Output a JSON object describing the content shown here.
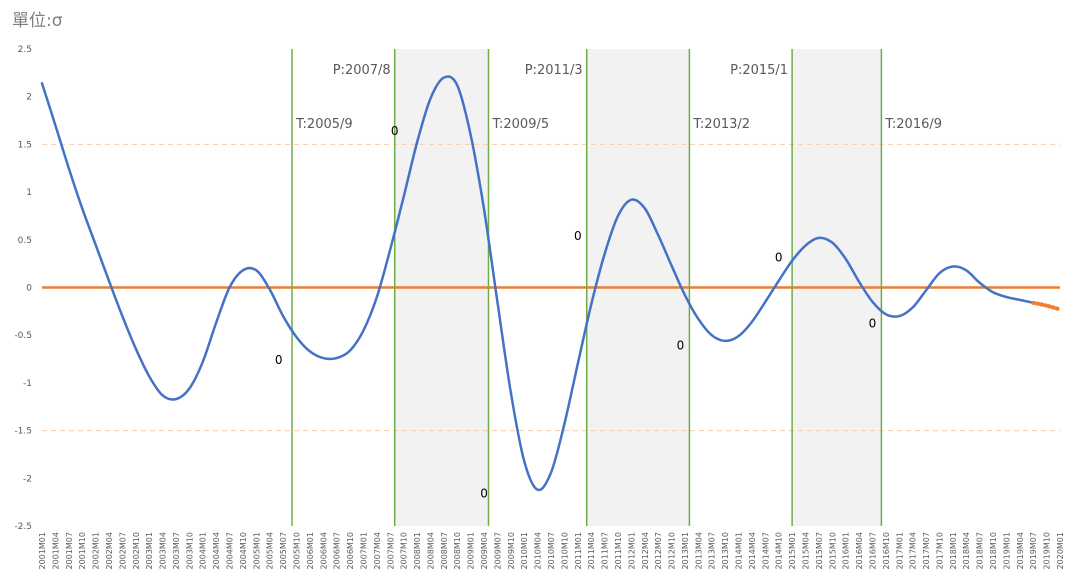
{
  "title": "單位:σ",
  "chart_data": {
    "type": "line",
    "title": "單位:σ",
    "xlabel": "",
    "ylabel": "",
    "ylim": [
      -2.5,
      2.5
    ],
    "yticks": [
      "2.5",
      "2",
      "1.5",
      "1",
      "0.5",
      "0",
      "-0.5",
      "-1",
      "-1.5",
      "-2",
      "-2.5"
    ],
    "ytick_values": [
      2.5,
      2,
      1.5,
      1,
      0.5,
      0,
      -0.5,
      -1,
      -1.5,
      -2,
      -2.5
    ],
    "x_start": "2001M01",
    "x_end": "2020M01",
    "x_tick_step_months": 3,
    "grid": false,
    "reference_lines": [
      {
        "value": 0,
        "color": "#ED7D31",
        "style": "solid"
      },
      {
        "value": 1.5,
        "color": "#F8CBAD",
        "style": "dashed"
      },
      {
        "value": -1.5,
        "color": "#F8CBAD",
        "style": "dashed"
      }
    ],
    "cycle_markers": [
      {
        "label": "T:2005/9",
        "date": "2005M09"
      },
      {
        "label": "P:2007/8",
        "date": "2007M08"
      },
      {
        "label": "T:2009/5",
        "date": "2009M05"
      },
      {
        "label": "P:2011/3",
        "date": "2011M03"
      },
      {
        "label": "T:2013/2",
        "date": "2013M02"
      },
      {
        "label": "P:2015/1",
        "date": "2015M01"
      },
      {
        "label": "T:2016/9",
        "date": "2016M09"
      }
    ],
    "shaded_periods": [
      {
        "from": "2007M08",
        "to": "2009M05"
      },
      {
        "from": "2011M03",
        "to": "2013M02"
      },
      {
        "from": "2015M01",
        "to": "2016M09"
      }
    ],
    "point_labels": [
      {
        "text": "0",
        "date": "2005M06",
        "y": -0.8
      },
      {
        "text": "0",
        "date": "2007M08",
        "y": 1.6
      },
      {
        "text": "0",
        "date": "2009M04",
        "y": -2.2
      },
      {
        "text": "0",
        "date": "2011M01",
        "y": 0.5
      },
      {
        "text": "0",
        "date": "2012M12",
        "y": -0.65
      },
      {
        "text": "0",
        "date": "2014M10",
        "y": 0.27
      },
      {
        "text": "0",
        "date": "2016M07",
        "y": -0.42
      }
    ],
    "series": [
      {
        "name": "",
        "color": "#4472C4",
        "style": "solid",
        "points": [
          [
            "2001M01",
            2.14
          ],
          [
            "2001M04",
            1.7
          ],
          [
            "2001M07",
            1.25
          ],
          [
            "2001M10",
            0.83
          ],
          [
            "2002M01",
            0.45
          ],
          [
            "2002M04",
            0.07
          ],
          [
            "2002M07",
            -0.3
          ],
          [
            "2002M10",
            -0.64
          ],
          [
            "2003M01",
            -0.93
          ],
          [
            "2003M04",
            -1.13
          ],
          [
            "2003M07",
            -1.17
          ],
          [
            "2003M10",
            -1.06
          ],
          [
            "2004M01",
            -0.78
          ],
          [
            "2004M04",
            -0.37
          ],
          [
            "2004M07",
            0.0
          ],
          [
            "2004M10",
            0.18
          ],
          [
            "2005M01",
            0.18
          ],
          [
            "2005M04",
            -0.02
          ],
          [
            "2005M07",
            -0.3
          ],
          [
            "2005M10",
            -0.52
          ],
          [
            "2006M01",
            -0.67
          ],
          [
            "2006M04",
            -0.74
          ],
          [
            "2006M07",
            -0.74
          ],
          [
            "2006M10",
            -0.66
          ],
          [
            "2007M01",
            -0.45
          ],
          [
            "2007M04",
            -0.1
          ],
          [
            "2007M07",
            0.4
          ],
          [
            "2007M10",
            0.95
          ],
          [
            "2008M01",
            1.52
          ],
          [
            "2008M04",
            1.98
          ],
          [
            "2008M07",
            2.2
          ],
          [
            "2008M10",
            2.12
          ],
          [
            "2009M01",
            1.6
          ],
          [
            "2009M04",
            0.82
          ],
          [
            "2009M07",
            -0.15
          ],
          [
            "2009M10",
            -1.1
          ],
          [
            "2010M01",
            -1.82
          ],
          [
            "2010M04",
            -2.12
          ],
          [
            "2010M07",
            -1.94
          ],
          [
            "2010M10",
            -1.43
          ],
          [
            "2011M01",
            -0.8
          ],
          [
            "2011M04",
            -0.18
          ],
          [
            "2011M07",
            0.35
          ],
          [
            "2011M10",
            0.75
          ],
          [
            "2012M01",
            0.92
          ],
          [
            "2012M04",
            0.83
          ],
          [
            "2012M07",
            0.55
          ],
          [
            "2012M10",
            0.23
          ],
          [
            "2013M01",
            -0.08
          ],
          [
            "2013M04",
            -0.33
          ],
          [
            "2013M07",
            -0.5
          ],
          [
            "2013M10",
            -0.56
          ],
          [
            "2014M01",
            -0.51
          ],
          [
            "2014M04",
            -0.36
          ],
          [
            "2014M07",
            -0.15
          ],
          [
            "2014M10",
            0.07
          ],
          [
            "2015M01",
            0.28
          ],
          [
            "2015M04",
            0.44
          ],
          [
            "2015M07",
            0.52
          ],
          [
            "2015M10",
            0.47
          ],
          [
            "2016M01",
            0.3
          ],
          [
            "2016M04",
            0.06
          ],
          [
            "2016M07",
            -0.15
          ],
          [
            "2016M10",
            -0.28
          ],
          [
            "2017M01",
            -0.3
          ],
          [
            "2017M04",
            -0.21
          ],
          [
            "2017M07",
            -0.03
          ],
          [
            "2017M10",
            0.15
          ],
          [
            "2018M01",
            0.22
          ],
          [
            "2018M04",
            0.18
          ],
          [
            "2018M07",
            0.05
          ],
          [
            "2018M10",
            -0.05
          ],
          [
            "2019M01",
            -0.1
          ],
          [
            "2019M04",
            -0.13
          ],
          [
            "2019M07",
            -0.16
          ]
        ]
      },
      {
        "name": "",
        "color": "#ED7D31",
        "style": "dotted",
        "points": [
          [
            "2019M07",
            -0.16
          ],
          [
            "2019M10",
            -0.19
          ],
          [
            "2020M01",
            -0.23
          ]
        ]
      }
    ]
  }
}
